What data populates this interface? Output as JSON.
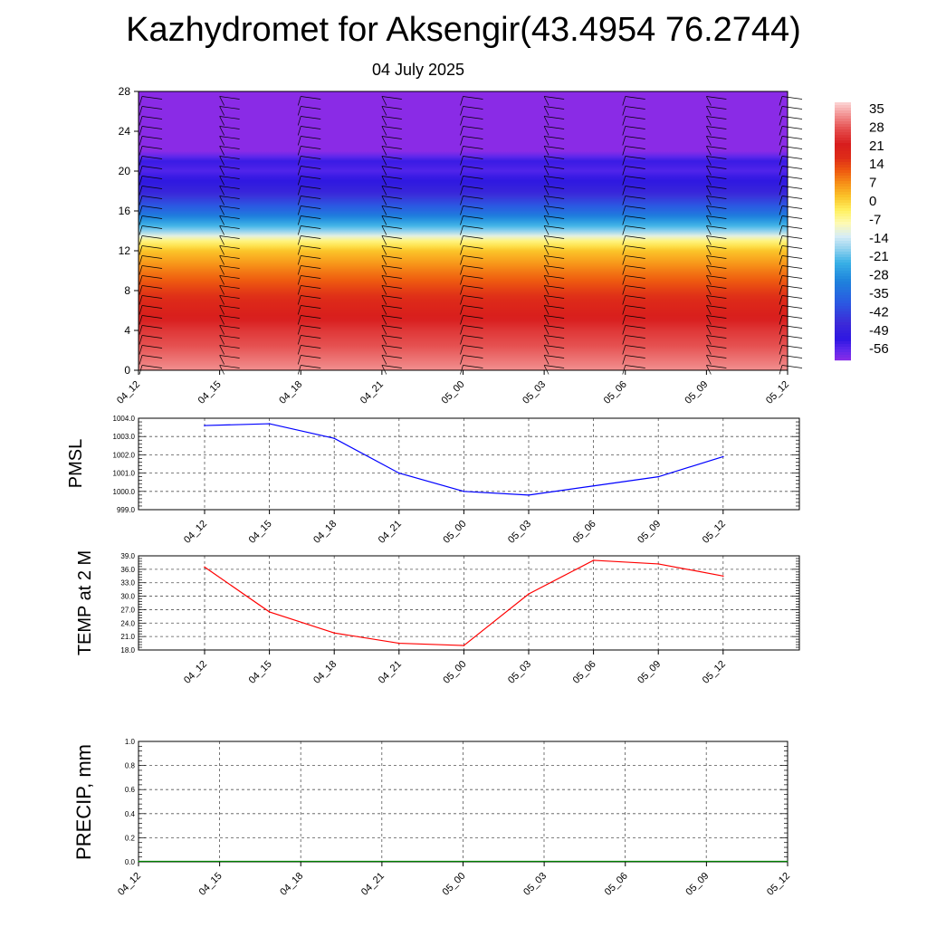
{
  "page": {
    "title": "Kazhydromet for Aksengir(43.4954 76.2744)",
    "subtitle": "04 July 2025"
  },
  "chart_data": [
    {
      "type": "heatmap",
      "name": "temperature-cross-section",
      "x_categories": [
        "04_12",
        "04_15",
        "04_18",
        "04_21",
        "05_00",
        "05_03",
        "05_06",
        "05_09",
        "05_12"
      ],
      "y_ticks": [
        0,
        4,
        8,
        12,
        16,
        20,
        24,
        28
      ],
      "ylim": [
        0,
        28
      ],
      "colorbar_labels": [
        "35",
        "28",
        "21",
        "14",
        "7",
        "0",
        "-7",
        "-14",
        "-21",
        "-28",
        "-35",
        "-42",
        "-49",
        "-56"
      ],
      "colorbar_range": [
        -60,
        38
      ],
      "profile_levels": [
        0,
        2,
        4,
        6,
        8,
        10,
        12,
        13,
        14,
        16,
        18,
        20,
        21,
        22,
        24,
        28
      ],
      "profile_values": [
        33,
        29,
        25,
        20,
        15,
        9,
        2,
        -5,
        -18,
        -35,
        -48,
        -55,
        -53,
        -60,
        -60,
        -60
      ],
      "wind_barbs": "shown"
    },
    {
      "type": "line",
      "name": "pmsl",
      "ylabel": "PMSL",
      "x": [
        "04_12",
        "04_15",
        "04_18",
        "04_21",
        "05_00",
        "05_03",
        "05_06",
        "05_09",
        "05_12"
      ],
      "y_ticks": [
        "999.0",
        "1000.0",
        "1001.0",
        "1002.0",
        "1003.0",
        "1004.0"
      ],
      "ylim": [
        999,
        1004
      ],
      "series": [
        {
          "values": [
            1003.6,
            1003.7,
            1002.9,
            1001.0,
            1000.0,
            999.8,
            1000.3,
            1000.8,
            1001.9
          ],
          "color": "#0000ff"
        }
      ],
      "grid": "dashed"
    },
    {
      "type": "line",
      "name": "temp2m",
      "ylabel": "TEMP at 2 M",
      "x": [
        "04_12",
        "04_15",
        "04_18",
        "04_21",
        "05_00",
        "05_03",
        "05_06",
        "05_09",
        "05_12"
      ],
      "y_ticks": [
        "18.0",
        "21.0",
        "24.0",
        "27.0",
        "30.0",
        "33.0",
        "36.0",
        "39.0"
      ],
      "ylim": [
        18,
        39
      ],
      "series": [
        {
          "values": [
            36.5,
            26.5,
            21.8,
            19.5,
            19.0,
            30.5,
            38.0,
            37.2,
            34.5
          ],
          "color": "#ff0000"
        }
      ],
      "grid": "dashed"
    },
    {
      "type": "line",
      "name": "precip",
      "ylabel": "PRECIP, mm",
      "x": [
        "04_12",
        "04_15",
        "04_18",
        "04_21",
        "05_00",
        "05_03",
        "05_06",
        "05_09",
        "05_12"
      ],
      "y_ticks": [
        "0.0",
        "0.2",
        "0.4",
        "0.6",
        "0.8",
        "1.0"
      ],
      "ylim": [
        0,
        1
      ],
      "series": [
        {
          "values": [
            0,
            0,
            0,
            0,
            0,
            0,
            0,
            0,
            0
          ],
          "color": "#008000"
        }
      ],
      "grid": "dashed"
    }
  ]
}
